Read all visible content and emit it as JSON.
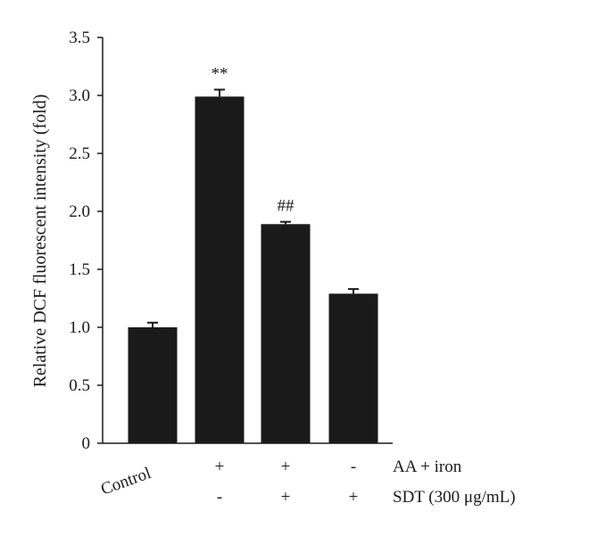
{
  "chart_data": {
    "type": "bar",
    "categories": [
      "Control",
      "AA + iron",
      "AA + iron + SDT",
      "SDT"
    ],
    "values": [
      1.0,
      2.99,
      1.89,
      1.29
    ],
    "errors": [
      0.04,
      0.06,
      0.02,
      0.04
    ],
    "annotations": [
      "",
      "**",
      "##",
      ""
    ],
    "ylabel": "Relative DCF fluorescent intensity (fold)",
    "xlabel": "",
    "ylim": [
      0,
      3.5
    ],
    "yticks": [
      "0",
      "0.5",
      "1.0",
      "1.5",
      "2.0",
      "2.5",
      "3.0",
      "3.5"
    ],
    "ytick_values": [
      0,
      0.5,
      1.0,
      1.5,
      2.0,
      2.5,
      3.0,
      3.5
    ],
    "bar_color": "#1a1a1a",
    "grid": false,
    "conditions": [
      {
        "label": "AA + iron",
        "marks": [
          "",
          "+",
          "+",
          "-"
        ]
      },
      {
        "label": "SDT (300 μg/mL)",
        "marks": [
          "",
          "-",
          "+",
          "+"
        ]
      }
    ],
    "control_label": "Control"
  }
}
